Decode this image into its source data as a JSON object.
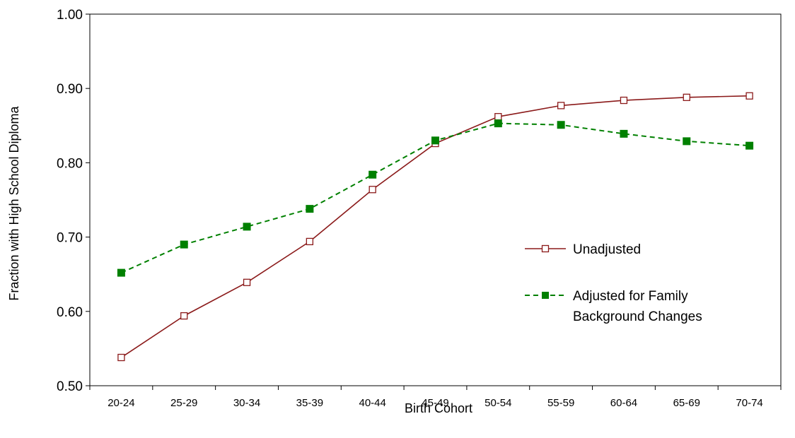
{
  "chart_data": {
    "type": "line",
    "xlabel": "Birth Cohort",
    "ylabel": "Fraction with High School Diploma",
    "ylim": [
      0.5,
      1.0
    ],
    "yticks": [
      "0.50",
      "0.60",
      "0.70",
      "0.80",
      "0.90",
      "1.00"
    ],
    "categories": [
      "20-24",
      "25-29",
      "30-34",
      "35-39",
      "40-44",
      "45-49",
      "50-54",
      "55-59",
      "60-64",
      "65-69",
      "70-74"
    ],
    "grid": false,
    "legend_position": "right",
    "series": [
      {
        "name": "Unadjusted",
        "color": "#8b1a1a",
        "line_style": "solid",
        "marker": "open-square",
        "values": [
          0.538,
          0.594,
          0.639,
          0.694,
          0.764,
          0.826,
          0.862,
          0.877,
          0.884,
          0.888,
          0.89
        ]
      },
      {
        "name": "Adjusted for Family Background Changes",
        "name_lines": [
          "Adjusted for Family",
          "Background Changes"
        ],
        "color": "#008000",
        "line_style": "dashed",
        "marker": "filled-square",
        "values": [
          0.652,
          0.69,
          0.714,
          0.738,
          0.784,
          0.83,
          0.853,
          0.851,
          0.839,
          0.829,
          0.823
        ]
      }
    ]
  }
}
